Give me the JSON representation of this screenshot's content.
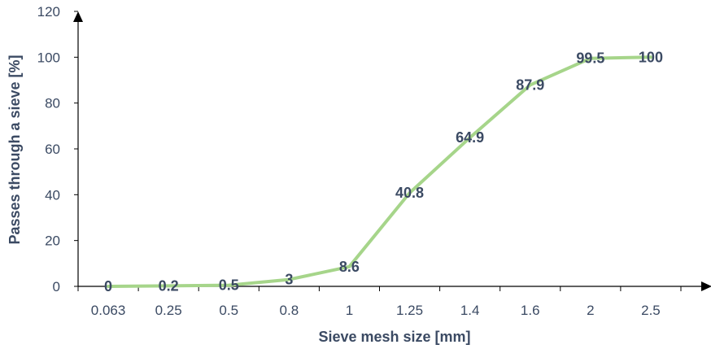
{
  "chart_data": {
    "type": "line",
    "categories": [
      "0.063",
      "0.25",
      "0.5",
      "0.8",
      "1",
      "1.25",
      "1.4",
      "1.6",
      "2",
      "2.5"
    ],
    "series": [
      {
        "values": [
          0,
          0.2,
          0.5,
          3,
          8.6,
          40.8,
          64.9,
          87.9,
          99.5,
          100
        ]
      }
    ],
    "data_labels": [
      "0",
      "0.2",
      "0.5",
      "3",
      "8.6",
      "40.8",
      "64.9",
      "87.9",
      "99.5",
      "100"
    ],
    "xlabel": "Sieve mesh size [mm]",
    "ylabel": "Passes through a sieve [%]",
    "ylim": [
      0,
      120
    ],
    "yticks": [
      "0",
      "20",
      "40",
      "60",
      "80",
      "100",
      "120"
    ],
    "grid": false,
    "legend": "none",
    "colors": {
      "line": "#a6d58a",
      "text": "#3b4a63",
      "axis": "#000000"
    }
  }
}
